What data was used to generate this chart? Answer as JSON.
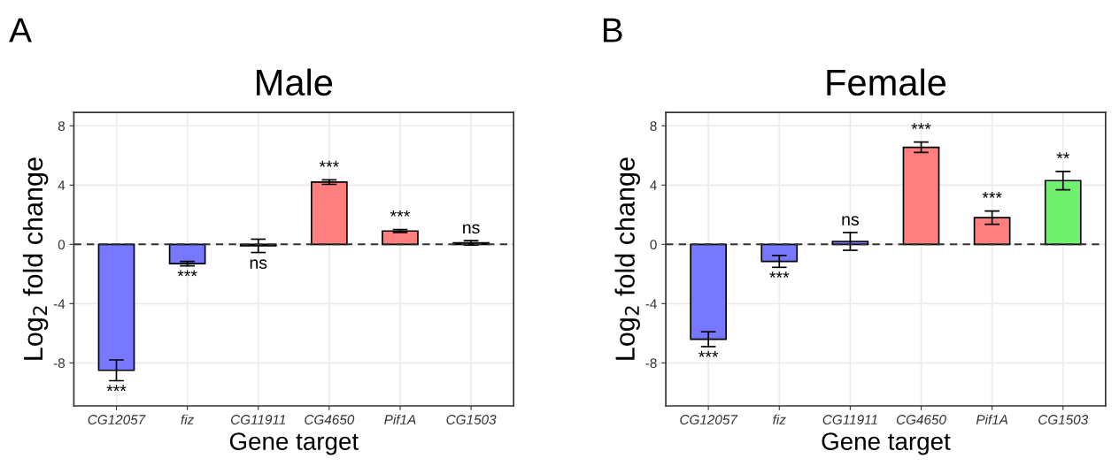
{
  "chart_data": [
    {
      "type": "bar",
      "title": "Male",
      "xlabel": "Gene target",
      "ylabel": "Log$_{2}$ fold change",
      "categories": [
        "CG12057",
        "fiz",
        "CG11911",
        "CG4650",
        "Pif1A",
        "CG1503"
      ],
      "values": [
        -8.5,
        -1.3,
        -0.1,
        4.2,
        0.9,
        0.1
      ],
      "errors": [
        0.7,
        0.15,
        0.45,
        0.15,
        0.1,
        0.15
      ],
      "colors": [
        "#7777ff",
        "#7777ff",
        "#7777ff",
        "#ff7f7f",
        "#ff7f7f",
        "#77ee77"
      ],
      "ylim": [
        -10.9,
        8.9
      ],
      "yticks": [
        -8,
        -4,
        0,
        4,
        8
      ],
      "grid": true,
      "legend": false,
      "ref_lines": [
        {
          "axis": "y",
          "value": 0,
          "line_style": "dashed",
          "color": "#333333"
        }
      ],
      "value_labels": [
        "***",
        "***",
        "ns",
        "***",
        "***",
        "ns"
      ],
      "annotations": [
        "A"
      ]
    },
    {
      "type": "bar",
      "title": "Female",
      "xlabel": "Gene target",
      "ylabel": "Log$_{2}$ fold change",
      "categories": [
        "CG12057",
        "fiz",
        "CG11911",
        "CG4650",
        "Pif1A",
        "CG1503"
      ],
      "values": [
        -6.4,
        -1.15,
        0.2,
        6.55,
        1.8,
        4.3
      ],
      "errors": [
        0.5,
        0.4,
        0.6,
        0.35,
        0.45,
        0.62
      ],
      "colors": [
        "#7777ff",
        "#7777ff",
        "#7777ff",
        "#ff7f7f",
        "#ff7f7f",
        "#6ff06f"
      ],
      "ylim": [
        -10.9,
        8.9
      ],
      "yticks": [
        -8,
        -4,
        0,
        4,
        8
      ],
      "grid": true,
      "legend": false,
      "ref_lines": [
        {
          "axis": "y",
          "value": 0,
          "line_style": "dashed",
          "color": "#333333"
        }
      ],
      "value_labels": [
        "***",
        "***",
        "ns",
        "***",
        "***",
        "**"
      ],
      "annotations": [
        "B"
      ]
    }
  ]
}
